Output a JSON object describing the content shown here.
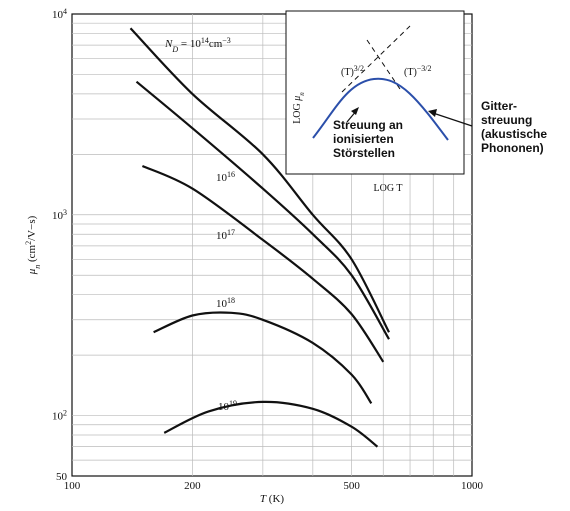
{
  "chart_data": {
    "type": "line",
    "x_scale": "log",
    "y_scale": "log",
    "xlim": [
      100,
      1000
    ],
    "ylim": [
      50,
      10000
    ],
    "xlabel_parts": [
      "T",
      " (K)"
    ],
    "ylabel_parts": [
      "μ",
      "n",
      " (cm",
      "2",
      "/V−s)"
    ],
    "x_ticks": [
      {
        "value": 100,
        "label": "100"
      },
      {
        "value": 200,
        "label": "200"
      },
      {
        "value": 500,
        "label": "500"
      },
      {
        "value": 1000,
        "label": "1000"
      }
    ],
    "y_ticks": [
      {
        "value": 50,
        "label": "50"
      },
      {
        "value": 100,
        "base": "10",
        "exp": "2"
      },
      {
        "value": 1000,
        "base": "10",
        "exp": "3"
      },
      {
        "value": 10000,
        "base": "10",
        "exp": "4"
      }
    ],
    "grid": true,
    "series": [
      {
        "label_parts": [
          "N",
          "D",
          " = 10",
          "14",
          "cm",
          "−3"
        ],
        "points": [
          [
            140,
            8500
          ],
          [
            200,
            4000
          ],
          [
            300,
            2000
          ],
          [
            400,
            1000
          ],
          [
            500,
            600
          ],
          [
            620,
            260
          ]
        ]
      },
      {
        "label_parts": [
          "10",
          "16"
        ],
        "points": [
          [
            145,
            4600
          ],
          [
            200,
            2700
          ],
          [
            300,
            1350
          ],
          [
            400,
            800
          ],
          [
            500,
            500
          ],
          [
            620,
            240
          ]
        ]
      },
      {
        "label_parts": [
          "10",
          "17"
        ],
        "points": [
          [
            150,
            1750
          ],
          [
            200,
            1350
          ],
          [
            300,
            750
          ],
          [
            400,
            480
          ],
          [
            500,
            320
          ],
          [
            600,
            185
          ]
        ]
      },
      {
        "label_parts": [
          "10",
          "18"
        ],
        "points": [
          [
            160,
            260
          ],
          [
            200,
            315
          ],
          [
            250,
            325
          ],
          [
            300,
            300
          ],
          [
            400,
            230
          ],
          [
            500,
            160
          ],
          [
            560,
            115
          ]
        ]
      },
      {
        "label_parts": [
          "10",
          "19"
        ],
        "points": [
          [
            170,
            82
          ],
          [
            220,
            105
          ],
          [
            300,
            117
          ],
          [
            400,
            108
          ],
          [
            500,
            88
          ],
          [
            580,
            70
          ]
        ]
      }
    ],
    "inset": {
      "xlabel": "LOG T",
      "ylabel_parts": [
        "LOG ",
        "μ",
        "n"
      ],
      "left_asymptote_parts": [
        "(T)",
        "3/2"
      ],
      "right_asymptote_parts": [
        "(T)",
        "−3/2"
      ],
      "curve_color": "#2b4faa"
    },
    "annotations": {
      "left": [
        "Streuung an",
        "ionisierten",
        "Störstellen"
      ],
      "right": [
        "Gitter-",
        "streuung",
        "(akustische",
        "Phononen)"
      ]
    }
  }
}
